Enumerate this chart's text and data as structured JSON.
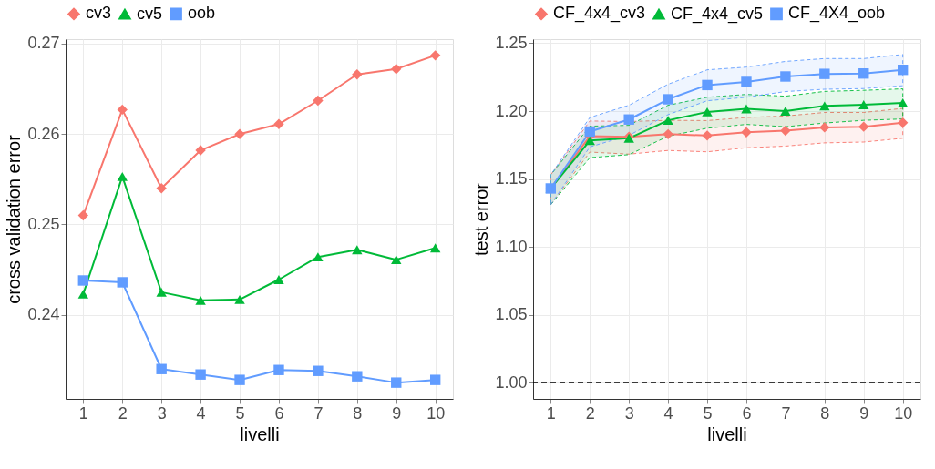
{
  "chart_data": [
    {
      "type": "line",
      "xlabel": "livelli",
      "ylabel": "cross validation error",
      "x": [
        1,
        2,
        3,
        4,
        5,
        6,
        7,
        8,
        9,
        10
      ],
      "xlim": [
        0.55,
        10.45
      ],
      "xticks": [
        1,
        2,
        3,
        4,
        5,
        6,
        7,
        8,
        9,
        10
      ],
      "ylim": [
        0.2307,
        0.2705
      ],
      "yticks": [
        0.24,
        0.25,
        0.26,
        0.27
      ],
      "grid": true,
      "legend": "top",
      "series": [
        {
          "name": "cv3",
          "color": "#f8766d",
          "marker": "diamond",
          "values": [
            0.251,
            0.2627,
            0.254,
            0.2582,
            0.26,
            0.2611,
            0.2637,
            0.2666,
            0.2672,
            0.2687
          ]
        },
        {
          "name": "cv5",
          "color": "#00ba38",
          "marker": "triangle",
          "values": [
            0.2423,
            0.2553,
            0.2425,
            0.2416,
            0.2417,
            0.2439,
            0.2464,
            0.2472,
            0.2461,
            0.2474
          ]
        },
        {
          "name": "oob",
          "color": "#619cff",
          "marker": "square",
          "values": [
            0.2438,
            0.2436,
            0.234,
            0.2334,
            0.2328,
            0.2339,
            0.2338,
            0.2332,
            0.2325,
            0.2328
          ]
        }
      ]
    },
    {
      "type": "line",
      "xlabel": "livelli",
      "ylabel": "test error",
      "x": [
        1,
        2,
        3,
        4,
        5,
        6,
        7,
        8,
        9,
        10
      ],
      "xlim": [
        0.55,
        10.45
      ],
      "xticks": [
        1,
        2,
        3,
        4,
        5,
        6,
        7,
        8,
        9,
        10
      ],
      "ylim": [
        0.988,
        1.253
      ],
      "yticks": [
        {
          "value": 1.0,
          "label": "1.00"
        },
        1.05,
        {
          "value": 1.1,
          "label": "1.10"
        },
        1.15,
        {
          "value": 1.2,
          "label": "1.20"
        },
        1.25
      ],
      "grid": true,
      "legend": "top",
      "ref_lines": [
        {
          "axis": "y",
          "value": 1.0,
          "color": "#000000",
          "line_style": "dashed"
        }
      ],
      "series": [
        {
          "name": "CF_4x4_cv3",
          "color": "#f8766d",
          "marker": "diamond",
          "values": [
            1.143,
            1.1815,
            1.181,
            1.183,
            1.182,
            1.1844,
            1.1855,
            1.188,
            1.1885,
            1.1915
          ],
          "lower": [
            1.131,
            1.1698,
            1.1683,
            1.171,
            1.17,
            1.173,
            1.1742,
            1.1766,
            1.1772,
            1.18
          ],
          "upper": [
            1.153,
            1.1927,
            1.1923,
            1.1932,
            1.193,
            1.1953,
            1.1964,
            1.199,
            1.199,
            1.202
          ]
        },
        {
          "name": "CF_4x4_cv5",
          "color": "#00ba38",
          "marker": "triangle",
          "values": [
            1.143,
            1.1783,
            1.18,
            1.1932,
            1.1994,
            1.2017,
            1.2,
            1.2038,
            1.2047,
            1.206
          ],
          "lower": [
            1.131,
            1.1657,
            1.1679,
            1.1815,
            1.1874,
            1.1902,
            1.1885,
            1.1912,
            1.1932,
            1.1942
          ],
          "upper": [
            1.153,
            1.1889,
            1.1895,
            1.2043,
            1.2102,
            1.2123,
            1.211,
            1.2145,
            1.2153,
            1.2164
          ]
        },
        {
          "name": "CF_4X4_oob",
          "color": "#619cff",
          "marker": "square",
          "values": [
            1.143,
            1.1849,
            1.1938,
            1.2087,
            1.2192,
            1.2215,
            1.2255,
            1.2274,
            1.2277,
            1.2304
          ],
          "lower": [
            1.131,
            1.1736,
            1.1821,
            1.1974,
            1.2076,
            1.2102,
            1.2144,
            1.2161,
            1.2166,
            1.2187
          ],
          "upper": [
            1.153,
            1.1953,
            1.2043,
            1.2198,
            1.2304,
            1.2324,
            1.2366,
            1.2387,
            1.2387,
            1.2417
          ]
        }
      ]
    }
  ]
}
